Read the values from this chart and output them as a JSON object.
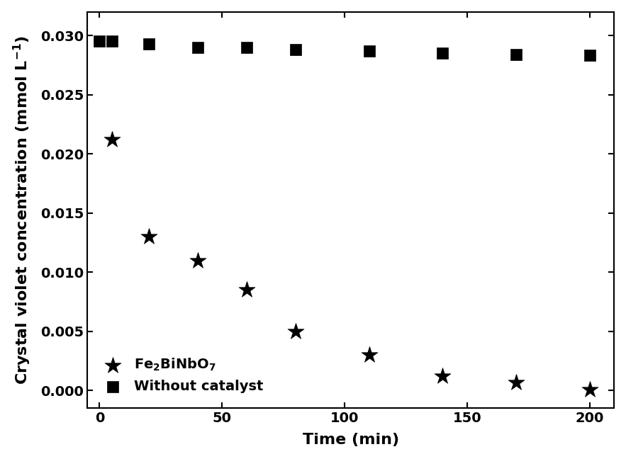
{
  "star_x": [
    5,
    20,
    40,
    60,
    80,
    110,
    140,
    170,
    200
  ],
  "star_y": [
    0.0212,
    0.013,
    0.011,
    0.0085,
    0.005,
    0.003,
    0.0012,
    0.0007,
    0.0001
  ],
  "square_x": [
    0,
    5,
    20,
    40,
    60,
    80,
    110,
    140,
    170,
    200
  ],
  "square_y": [
    0.0295,
    0.0295,
    0.0293,
    0.029,
    0.029,
    0.0288,
    0.0287,
    0.0285,
    0.0284,
    0.0283
  ],
  "xlabel": "Time (min)",
  "ylabel": "Crystal violet concentration (mmol L$^{-1}$)",
  "legend_star": "Fe$_2$BiNbO$_7$",
  "legend_square": "Without catalyst",
  "xlim": [
    -5,
    210
  ],
  "ylim": [
    -0.0015,
    0.032
  ],
  "xticks": [
    0,
    50,
    100,
    150,
    200
  ],
  "yticks": [
    0.0,
    0.005,
    0.01,
    0.015,
    0.02,
    0.025,
    0.03
  ],
  "marker_color": "black",
  "bg_color": "white",
  "fontsize_label": 16,
  "fontsize_tick": 14,
  "fontsize_legend": 14
}
